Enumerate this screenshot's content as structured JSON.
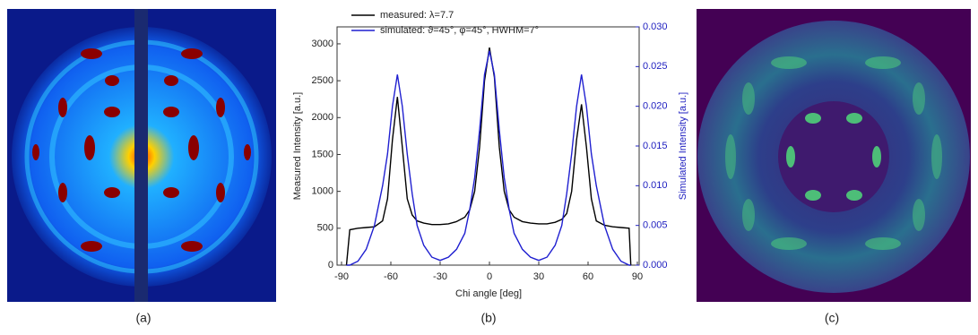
{
  "chart_data": {
    "type": "line",
    "legend_labels": "see series",
    "xlabel": "Chi angle [deg]",
    "ylabel": "Measured Intensity [a.u.]",
    "y2label": "Simulated Intensity [a.u.]",
    "xlim": [
      -90,
      90
    ],
    "xticks": [
      -90,
      -60,
      -30,
      0,
      30,
      60,
      90
    ],
    "ylim": [
      0,
      3230
    ],
    "yticks": [
      0,
      500,
      1000,
      1500,
      2000,
      2500,
      3000
    ],
    "y2lim": [
      0,
      0.03
    ],
    "y2ticks": [
      {
        "value": 0,
        "label": "0.000"
      },
      {
        "value": 0.005,
        "label": "0.005"
      },
      {
        "value": 0.01,
        "label": "0.010"
      },
      {
        "value": 0.015,
        "label": "0.015"
      },
      {
        "value": 0.02,
        "label": "0.020"
      },
      {
        "value": 0.025,
        "label": "0.025"
      },
      {
        "value": 0.03,
        "label": "0.030"
      }
    ],
    "legend": "upper left",
    "x": [
      -87,
      -85,
      -80,
      -75,
      -70,
      -65,
      -62,
      -59,
      -56,
      -53,
      -50,
      -47,
      -44,
      -40,
      -35,
      -30,
      -25,
      -20,
      -15,
      -12,
      -9,
      -6,
      -3,
      0,
      3,
      6,
      9,
      12,
      15,
      20,
      25,
      30,
      35,
      40,
      44,
      47,
      50,
      53,
      56,
      59,
      62,
      65,
      70,
      75,
      80,
      85,
      86
    ],
    "series": [
      {
        "name": "measured: λ=7.7",
        "color": "#000000",
        "values": [
          0,
          480,
          500,
          510,
          520,
          600,
          900,
          1700,
          2280,
          1600,
          900,
          680,
          600,
          570,
          550,
          550,
          560,
          590,
          650,
          750,
          1000,
          1600,
          2500,
          2950,
          2550,
          1600,
          1000,
          750,
          650,
          590,
          570,
          560,
          560,
          580,
          620,
          700,
          1000,
          1700,
          2180,
          1600,
          900,
          600,
          540,
          520,
          510,
          500,
          0
        ]
      },
      {
        "name": "simulated: ϑ=45°, φ=45°, HWHM=7°",
        "color": "#1f1fd0",
        "axis": "y2",
        "values": [
          0,
          0,
          0.0005,
          0.002,
          0.005,
          0.01,
          0.014,
          0.02,
          0.024,
          0.02,
          0.014,
          0.009,
          0.005,
          0.0025,
          0.001,
          0.0006,
          0.001,
          0.002,
          0.004,
          0.007,
          0.011,
          0.017,
          0.024,
          0.027,
          0.024,
          0.017,
          0.011,
          0.007,
          0.004,
          0.002,
          0.001,
          0.0006,
          0.001,
          0.0025,
          0.005,
          0.009,
          0.014,
          0.02,
          0.024,
          0.02,
          0.014,
          0.01,
          0.005,
          0.002,
          0.0005,
          0,
          0
        ]
      }
    ]
  },
  "captions": [
    "(a)",
    "(b)",
    "(c)"
  ]
}
